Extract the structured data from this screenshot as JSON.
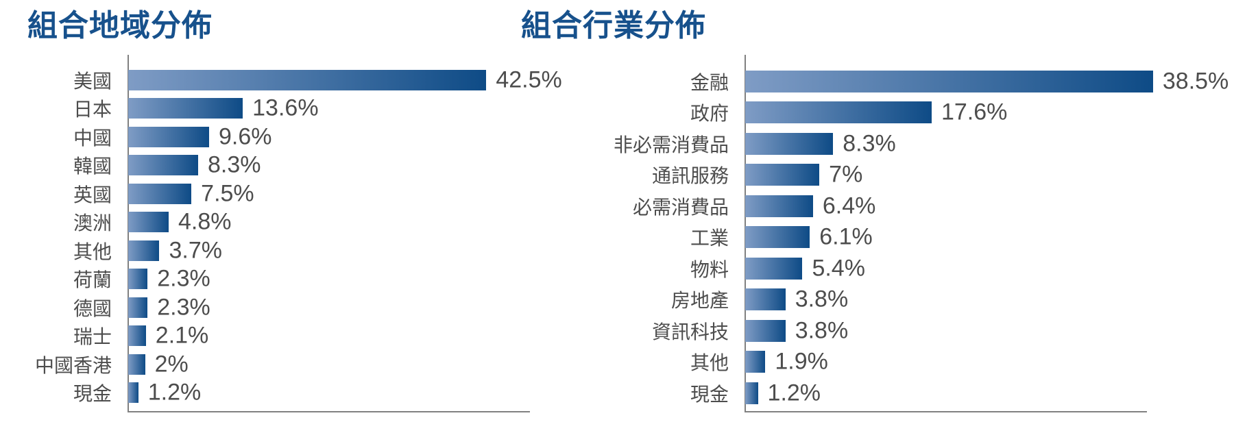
{
  "colors": {
    "background": "#FFFFFF",
    "title": "#17518C",
    "label_text": "#4D4D4D",
    "value_text": "#4D4D4D",
    "axis": "#808080",
    "bar_gradient_start": "#7F9CC5",
    "bar_gradient_end": "#0E4B86"
  },
  "chart_data": [
    {
      "type": "bar",
      "orientation": "horizontal",
      "title": "組合地域分佈",
      "categories": [
        "美國",
        "日本",
        "中國",
        "韓國",
        "英國",
        "澳洲",
        "其他",
        "荷蘭",
        "德國",
        "瑞士",
        "中國香港",
        "現金"
      ],
      "values": [
        42.5,
        13.6,
        9.6,
        8.3,
        7.5,
        4.8,
        3.7,
        2.3,
        2.3,
        2.1,
        2,
        1.2
      ],
      "value_labels": [
        "42.5%",
        "13.6%",
        "9.6%",
        "8.3%",
        "7.5%",
        "4.8%",
        "3.7%",
        "2.3%",
        "2.3%",
        "2.1%",
        "2%",
        "1.2%"
      ],
      "xlim": [
        0,
        47.6
      ],
      "grid": false,
      "legend": "none",
      "value_label_position": "end-of-bar",
      "bar_gradient": [
        "#7F9CC5",
        "#0E4B86"
      ]
    },
    {
      "type": "bar",
      "orientation": "horizontal",
      "title": "組合行業分佈",
      "categories": [
        "金融",
        "政府",
        "非必需消費品",
        "通訊服務",
        "必需消費品",
        "工業",
        "物料",
        "房地產",
        "資訊科技",
        "其他",
        "現金"
      ],
      "values": [
        38.5,
        17.6,
        8.3,
        7,
        6.4,
        6.1,
        5.4,
        3.8,
        3.8,
        1.9,
        1.2
      ],
      "value_labels": [
        "38.5%",
        "17.6%",
        "8.3%",
        "7%",
        "6.4%",
        "6.1%",
        "5.4%",
        "3.8%",
        "3.8%",
        "1.9%",
        "1.2%"
      ],
      "xlim": [
        0,
        37.86
      ],
      "grid": false,
      "legend": "none",
      "value_label_position": "end-of-bar",
      "bar_gradient": [
        "#7F9CC5",
        "#0E4B86"
      ]
    }
  ]
}
